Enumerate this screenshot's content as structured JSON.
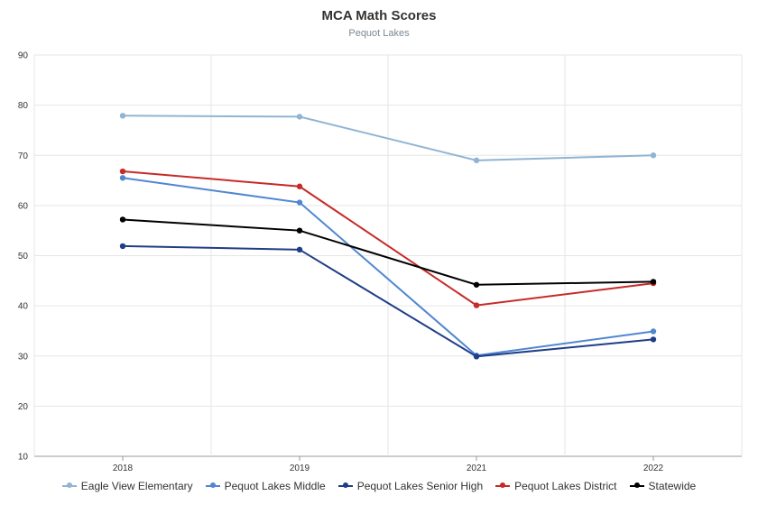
{
  "chart_data": {
    "type": "line",
    "title": "MCA Math Scores",
    "subtitle": "Pequot Lakes",
    "categories": [
      "2018",
      "2019",
      "2021",
      "2022"
    ],
    "ylim": [
      10,
      90
    ],
    "yticks": [
      10,
      20,
      30,
      40,
      50,
      60,
      70,
      80,
      90
    ],
    "grid": true,
    "legend_position": "bottom",
    "series": [
      {
        "name": "Eagle View Elementary",
        "color": "#91b4d3",
        "values": [
          77.9,
          77.7,
          69.0,
          70.0
        ]
      },
      {
        "name": "Pequot Lakes Middle",
        "color": "#5187d1",
        "values": [
          65.5,
          60.6,
          30.1,
          34.9
        ]
      },
      {
        "name": "Pequot Lakes Senior High",
        "color": "#203e87",
        "values": [
          51.9,
          51.2,
          29.9,
          33.3
        ]
      },
      {
        "name": "Pequot Lakes District",
        "color": "#c62b28",
        "values": [
          66.8,
          63.8,
          40.1,
          44.5
        ]
      },
      {
        "name": "Statewide",
        "color": "#000000",
        "values": [
          57.2,
          55.0,
          44.2,
          44.8
        ]
      }
    ]
  }
}
